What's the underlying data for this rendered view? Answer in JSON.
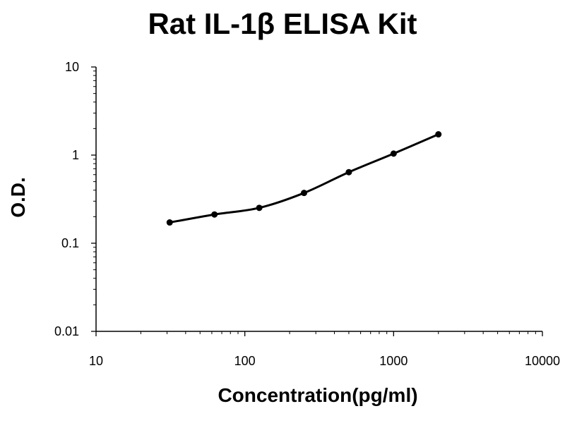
{
  "chart_data": {
    "type": "line",
    "title": "Rat IL-1β ELISA Kit",
    "xlabel": "Concentration(pg/ml)",
    "ylabel": "O.D.",
    "x_scale": "log",
    "y_scale": "log",
    "xlim": [
      10,
      10000
    ],
    "ylim": [
      0.01,
      10
    ],
    "x_ticks": [
      "10",
      "100",
      "1000",
      "10000"
    ],
    "y_ticks": [
      "10",
      "1",
      "0.1",
      "0.01"
    ],
    "grid": false,
    "legend": "none",
    "series": [
      {
        "x": [
          31.25,
          62.5,
          125,
          250,
          500,
          1000,
          2000
        ],
        "y": [
          0.172,
          0.212,
          0.252,
          0.372,
          0.64,
          1.04,
          1.72
        ]
      }
    ],
    "colors": {
      "line": "#000000",
      "marker": "#000000",
      "axis": "#000000"
    }
  }
}
